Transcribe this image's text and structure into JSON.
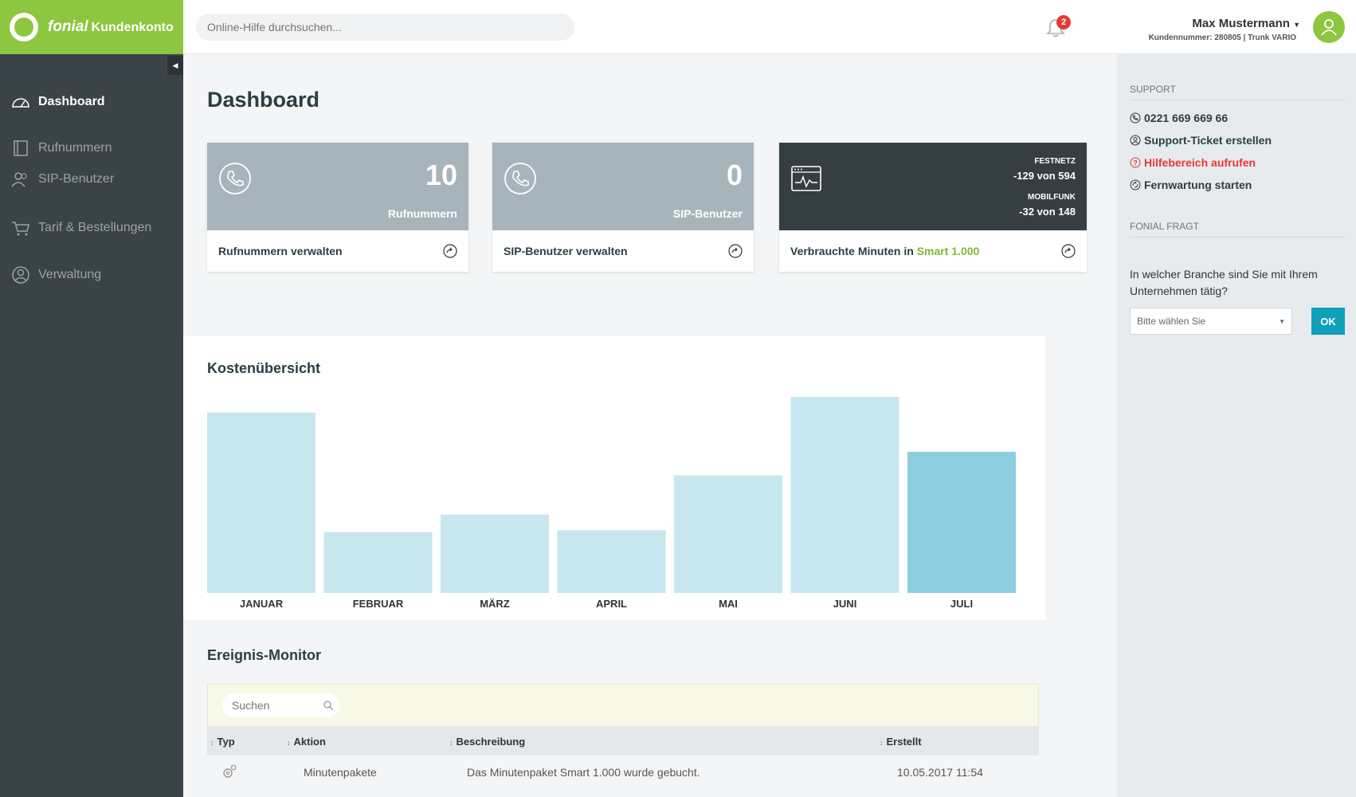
{
  "brand": {
    "italic": "fonial",
    "name": "Kundenkonto",
    "color": "#8dc63f"
  },
  "search": {
    "placeholder": "Online-Hilfe durchsuchen..."
  },
  "notifications": {
    "count": "2"
  },
  "user": {
    "name": "Max Mustermann",
    "subline": "Kundennummer: 280805 | Trunk VARIO"
  },
  "sidebar": {
    "items": [
      {
        "label": "Dashboard",
        "icon": "speedometer-icon"
      },
      {
        "label": "Rufnummern",
        "icon": "phonebook-icon"
      },
      {
        "label": "SIP-Benutzer",
        "icon": "users-icon"
      },
      {
        "label": "Tarif & Bestellungen",
        "icon": "cart-icon"
      },
      {
        "label": "Verwaltung",
        "icon": "user-circle-icon"
      }
    ]
  },
  "main": {
    "title": "Dashboard",
    "cards": [
      {
        "value": "10",
        "sub": "Rufnummern",
        "link": "Rufnummern verwalten"
      },
      {
        "value": "0",
        "sub": "SIP-Benutzer",
        "link": "SIP-Benutzer verwalten"
      },
      {
        "festnetz_label": "FESTNETZ",
        "festnetz_value": "-129 von 594",
        "mobilfunk_label": "MOBILFUNK",
        "mobilfunk_value": "-32 von 148",
        "link_prefix": "Verbrauchte Minuten in",
        "link_highlight": "Smart 1.000"
      }
    ]
  },
  "costs": {
    "title": "Kostenübersicht"
  },
  "chart_data": {
    "type": "bar",
    "categories": [
      "JANUAR",
      "FEBRUAR",
      "MÄRZ",
      "APRIL",
      "MAI",
      "JUNI",
      "JULI"
    ],
    "values": [
      92,
      31,
      40,
      32,
      60,
      100,
      72
    ],
    "ylim": [
      0,
      100
    ],
    "grid": false,
    "bar_color": "#c7e7ee",
    "highlight_color": "#8dcfdf",
    "highlight_index": 6
  },
  "monitor": {
    "title": "Ereignis-Monitor",
    "search_placeholder": "Suchen",
    "columns": [
      "Typ",
      "Aktion",
      "Beschreibung",
      "Erstellt"
    ],
    "rows": [
      {
        "icon": "gears-icon",
        "action": "Minutenpakete",
        "description": "Das Minutenpaket Smart 1.000 wurde gebucht.",
        "created": "10.05.2017 11:54"
      }
    ]
  },
  "support": {
    "heading": "SUPPORT",
    "phone": "0221 669 669 66",
    "ticket": "Support-Ticket erstellen",
    "help": "Hilfebereich aufrufen",
    "remote": "Fernwartung starten"
  },
  "poll": {
    "heading": "FONIAL FRAGT",
    "question": "In welcher Branche sind Sie mit Ihrem Unternehmen tätig?",
    "select_value": "Bitte wählen Sie",
    "ok_label": "OK"
  }
}
